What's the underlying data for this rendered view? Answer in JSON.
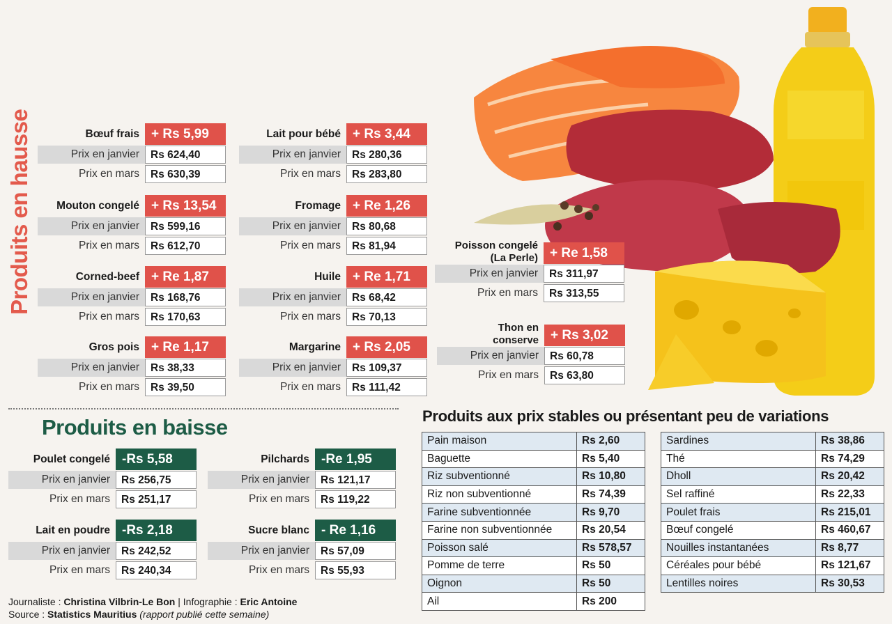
{
  "hausse": {
    "title": "Produits en hausse",
    "label_jan": "Prix en janvier",
    "label_mars": "Prix en mars",
    "items": [
      {
        "name": "Bœuf frais",
        "change": "+ Rs 5,99",
        "jan": "Rs 624,40",
        "mars": "Rs 630,39"
      },
      {
        "name": "Mouton congelé",
        "change": "+ Rs 13,54",
        "jan": "Rs 599,16",
        "mars": "Rs 612,70"
      },
      {
        "name": "Corned-beef",
        "change": "+ Re 1,87",
        "jan": "Rs 168,76",
        "mars": "Rs 170,63"
      },
      {
        "name": "Gros pois",
        "change": "+ Re 1,17",
        "jan": "Rs 38,33",
        "mars": "Rs 39,50"
      },
      {
        "name": "Lait pour bébé",
        "change": "+ Rs 3,44",
        "jan": "Rs 280,36",
        "mars": "Rs 283,80"
      },
      {
        "name": "Fromage",
        "change": "+ Re 1,26",
        "jan": "Rs 80,68",
        "mars": "Rs 81,94"
      },
      {
        "name": "Huile",
        "change": "+ Re 1,71",
        "jan": "Rs 68,42",
        "mars": "Rs 70,13"
      },
      {
        "name": "Margarine",
        "change": "+ Rs 2,05",
        "jan": "Rs 109,37",
        "mars": "Rs 111,42"
      },
      {
        "name": "Poisson congelé",
        "name2": "(La Perle)",
        "change": "+ Re 1,58",
        "jan": "Rs 311,97",
        "mars": "Rs 313,55"
      },
      {
        "name": "Thon en",
        "name2": "conserve",
        "change": "+ Rs 3,02",
        "jan": "Rs 60,78",
        "mars": "Rs 63,80"
      }
    ]
  },
  "baisse": {
    "title": "Produits en baisse",
    "items": [
      {
        "name": "Poulet congelé",
        "change": "-Rs 5,58",
        "jan": "Rs 256,75",
        "mars": "Rs 251,17"
      },
      {
        "name": "Lait en poudre",
        "change": "-Rs 2,18",
        "jan": "Rs 242,52",
        "mars": "Rs 240,34"
      },
      {
        "name": "Pilchards",
        "change": "-Re 1,95",
        "jan": "Rs 121,17",
        "mars": "Rs 119,22"
      },
      {
        "name": "Sucre blanc",
        "change": "- Re 1,16",
        "jan": "Rs 57,09",
        "mars": "Rs 55,93"
      }
    ]
  },
  "stables": {
    "title": "Produits aux prix stables ou présentant peu de variations",
    "left": [
      {
        "name": "Pain maison",
        "price": "Rs 2,60"
      },
      {
        "name": "Baguette",
        "price": "Rs 5,40"
      },
      {
        "name": "Riz subventionné",
        "price": "Rs 10,80"
      },
      {
        "name": "Riz non subventionné",
        "price": "Rs 74,39"
      },
      {
        "name": "Farine subventionnée",
        "price": "Rs 9,70"
      },
      {
        "name": "Farine non subventionnée",
        "price": "Rs 20,54"
      },
      {
        "name": "Poisson salé",
        "price": "Rs 578,57"
      },
      {
        "name": "Pomme de terre",
        "price": "Rs 50"
      },
      {
        "name": "Oignon",
        "price": "Rs 50"
      },
      {
        "name": "Ail",
        "price": "Rs 200"
      }
    ],
    "right": [
      {
        "name": "Sardines",
        "price": "Rs 38,86"
      },
      {
        "name": "Thé",
        "price": "Rs 74,29"
      },
      {
        "name": "Dholl",
        "price": "Rs 20,42"
      },
      {
        "name": "Sel raffiné",
        "price": "Rs 22,33"
      },
      {
        "name": "Poulet frais",
        "price": "Rs 215,01"
      },
      {
        "name": "Bœuf congelé",
        "price": "Rs 460,67"
      },
      {
        "name": "Nouilles instantanées",
        "price": "Rs 8,77"
      },
      {
        "name": "Céréales pour bébé",
        "price": "Rs 121,67"
      },
      {
        "name": "Lentilles noires",
        "price": "Rs 30,53"
      }
    ]
  },
  "credits": {
    "journaliste_label": "Journaliste : ",
    "journaliste": "Christina Vilbrin-Le Bon",
    "infographie_label": " | Infographie : ",
    "infographie": "Eric Antoine",
    "source_label": "Source : ",
    "source": "Statistics Mauritius",
    "source_note": " (rapport publié cette semaine)"
  },
  "colors": {
    "hausse": "#e0524a",
    "baisse": "#1d5c46",
    "stable_row": "#dfe9f2"
  },
  "icons": [
    "salmon-icon",
    "beef-icon",
    "oil-bottle-icon",
    "cheese-icon",
    "peppercorn-icon"
  ]
}
